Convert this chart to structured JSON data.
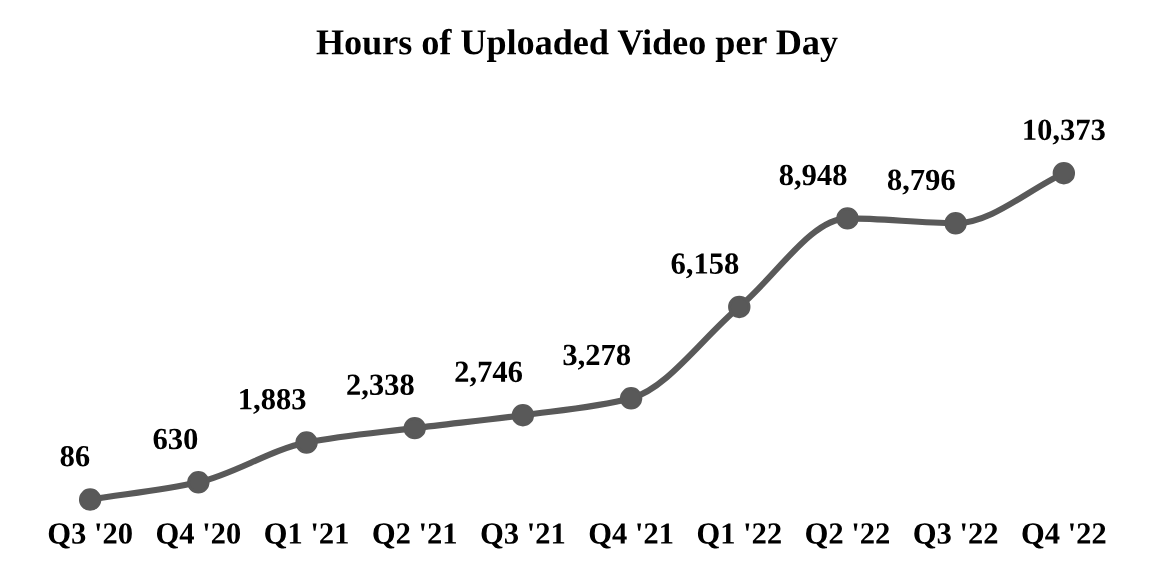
{
  "chart_data": {
    "type": "line",
    "title": "Hours of Uploaded Video per Day",
    "categories": [
      "Q3 '20",
      "Q4 '20",
      "Q1 '21",
      "Q2 '21",
      "Q3 '21",
      "Q4 '21",
      "Q1 '22",
      "Q2 '22",
      "Q3 '22",
      "Q4 '22"
    ],
    "series": [
      {
        "color": "#595959",
        "values": [
          86,
          630,
          1883,
          2338,
          2746,
          3278,
          6158,
          8948,
          8796,
          10373
        ],
        "value_labels": [
          "86",
          "630",
          "1,883",
          "2,338",
          "2,746",
          "3,278",
          "6,158",
          "8,948",
          "8,796",
          "10,373"
        ]
      }
    ],
    "marker": "circle",
    "line_style": "solid",
    "grid": false,
    "legend": false,
    "tick_labels": "x"
  }
}
